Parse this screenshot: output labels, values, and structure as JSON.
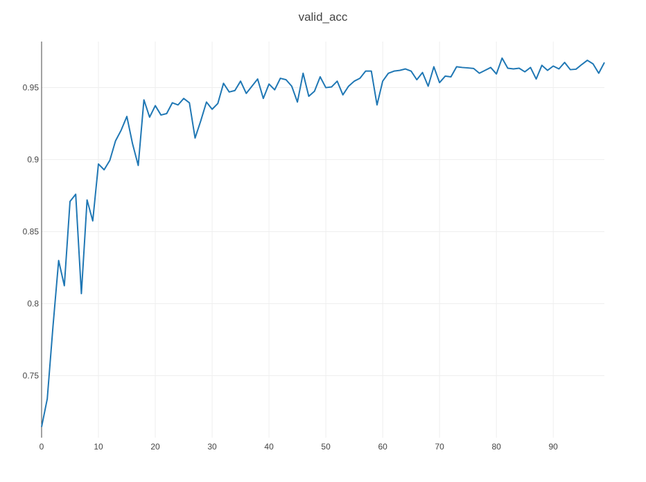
{
  "chart_data": {
    "type": "line",
    "title": "valid_acc",
    "xlabel": "",
    "ylabel": "",
    "xlim": [
      0,
      99
    ],
    "ylim": [
      0.707,
      0.982
    ],
    "x_ticks": [
      0,
      10,
      20,
      30,
      40,
      50,
      60,
      70,
      80,
      90
    ],
    "y_ticks": [
      0.75,
      0.8,
      0.85,
      0.9,
      0.95
    ],
    "y_tick_labels": [
      "0.75",
      "0.8",
      "0.85",
      "0.9",
      "0.95"
    ],
    "grid": true,
    "legend": "none",
    "colors": {
      "line": "#1f77b4",
      "grid": "#eeeeee",
      "axis": "#444444",
      "text": "#444444"
    },
    "series": [
      {
        "values": [
          0.7145,
          0.734,
          0.784,
          0.83,
          0.8125,
          0.871,
          0.876,
          0.807,
          0.872,
          0.8575,
          0.897,
          0.893,
          0.8995,
          0.913,
          0.9205,
          0.93,
          0.911,
          0.896,
          0.9415,
          0.9295,
          0.9375,
          0.931,
          0.932,
          0.9395,
          0.938,
          0.9425,
          0.9395,
          0.915,
          0.927,
          0.94,
          0.935,
          0.939,
          0.953,
          0.947,
          0.948,
          0.9545,
          0.946,
          0.951,
          0.956,
          0.9425,
          0.9525,
          0.9485,
          0.9565,
          0.9555,
          0.951,
          0.94,
          0.96,
          0.944,
          0.9475,
          0.9575,
          0.95,
          0.9505,
          0.9545,
          0.945,
          0.951,
          0.9545,
          0.9565,
          0.9615,
          0.9615,
          0.938,
          0.9545,
          0.96,
          0.9615,
          0.962,
          0.963,
          0.9615,
          0.9555,
          0.9605,
          0.951,
          0.9645,
          0.9535,
          0.958,
          0.9575,
          0.9645,
          0.964,
          0.9637,
          0.9633,
          0.96,
          0.962,
          0.964,
          0.9595,
          0.9705,
          0.9635,
          0.963,
          0.9635,
          0.961,
          0.964,
          0.956,
          0.9655,
          0.962,
          0.965,
          0.963,
          0.9675,
          0.9625,
          0.9628,
          0.966,
          0.969,
          0.9665,
          0.96,
          0.9675
        ]
      }
    ]
  }
}
